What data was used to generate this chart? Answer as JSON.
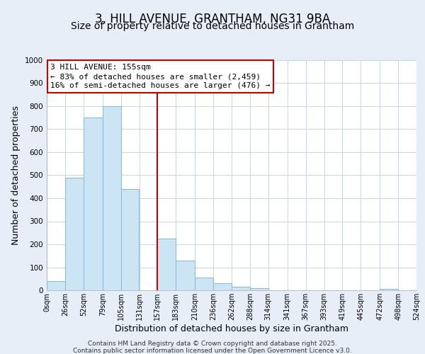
{
  "title": "3, HILL AVENUE, GRANTHAM, NG31 9BA",
  "subtitle": "Size of property relative to detached houses in Grantham",
  "xlabel": "Distribution of detached houses by size in Grantham",
  "ylabel": "Number of detached properties",
  "footer_line1": "Contains HM Land Registry data © Crown copyright and database right 2025.",
  "footer_line2": "Contains public sector information licensed under the Open Government Licence v3.0.",
  "annotation_line1": "3 HILL AVENUE: 155sqm",
  "annotation_line2": "← 83% of detached houses are smaller (2,459)",
  "annotation_line3": "16% of semi-detached houses are larger (476) →",
  "bar_edges": [
    0,
    26,
    52,
    79,
    105,
    131,
    157,
    183,
    210,
    236,
    262,
    288,
    314,
    341,
    367,
    393,
    419,
    445,
    472,
    498,
    524
  ],
  "bar_heights": [
    40,
    490,
    750,
    800,
    440,
    0,
    225,
    130,
    55,
    30,
    15,
    10,
    0,
    0,
    0,
    0,
    0,
    0,
    5,
    0
  ],
  "bar_color": "#cce5f5",
  "bar_edgecolor": "#89b8d8",
  "vline_x": 157,
  "vline_color": "#cc0000",
  "annotation_box_edgecolor": "#cc0000",
  "ylim": [
    0,
    1000
  ],
  "xlim": [
    0,
    524
  ],
  "tick_labels": [
    "0sqm",
    "26sqm",
    "52sqm",
    "79sqm",
    "105sqm",
    "131sqm",
    "157sqm",
    "183sqm",
    "210sqm",
    "236sqm",
    "262sqm",
    "288sqm",
    "314sqm",
    "341sqm",
    "367sqm",
    "393sqm",
    "419sqm",
    "445sqm",
    "472sqm",
    "498sqm",
    "524sqm"
  ],
  "tick_positions": [
    0,
    26,
    52,
    79,
    105,
    131,
    157,
    183,
    210,
    236,
    262,
    288,
    314,
    341,
    367,
    393,
    419,
    445,
    472,
    498,
    524
  ],
  "background_color": "#e8eef8",
  "plot_bg_color": "#ffffff",
  "grid_color": "#c5d5e8",
  "title_fontsize": 12,
  "subtitle_fontsize": 10,
  "axis_label_fontsize": 9,
  "tick_fontsize": 7,
  "annotation_fontsize": 8,
  "footer_fontsize": 6.5
}
